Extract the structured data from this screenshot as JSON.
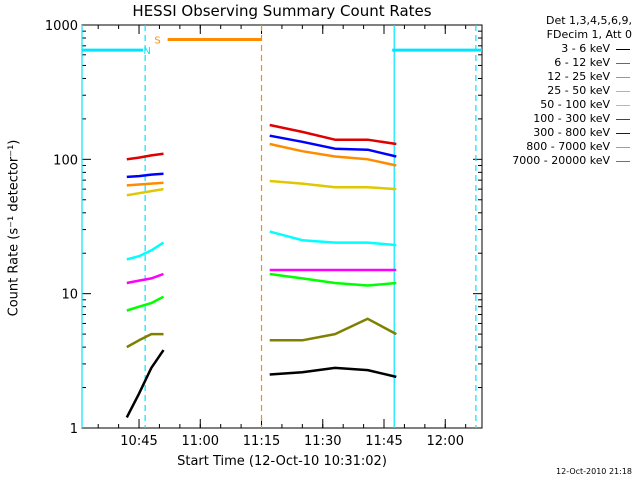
{
  "chart_data": {
    "type": "line",
    "title": "HESSI Observing Summary Count Rates",
    "xlabel": "Start Time (12-Oct-10 10:31:02)",
    "ylabel": "Count Rate (s⁻¹ detector⁻¹)",
    "yscale": "log",
    "ylim": [
      1,
      1000
    ],
    "xlim": [
      "10:31:02",
      "12:09:00"
    ],
    "x_ticks": [
      "10:45",
      "11:00",
      "11:15",
      "11:30",
      "11:45",
      "12:00"
    ],
    "y_ticks": [
      "1",
      "10",
      "100",
      "1000"
    ],
    "legend_header": [
      "Det 1,3,4,5,6,9,",
      "FDecim 1, Att 0"
    ],
    "legend_placement": "outside-right",
    "timestamp": "12-Oct-2010 21:18",
    "flags": [
      {
        "label": "N",
        "color": "#00e5ff"
      },
      {
        "label": "S",
        "color": "#ff8c00"
      }
    ],
    "flag_segments": [
      {
        "name": "N",
        "color": "#00e5ff",
        "start": "10:31:02",
        "end": "10:46",
        "level": 650
      },
      {
        "name": "N",
        "color": "#00e5ff",
        "start": "11:47",
        "end": "12:09",
        "level": 650
      },
      {
        "name": "S",
        "color": "#ff8c00",
        "start": "10:52",
        "end": "11:15",
        "level": 780
      }
    ],
    "vertical_markers": [
      {
        "time": "10:31:02",
        "color": "#00e5ff",
        "style": "solid"
      },
      {
        "time": "10:46:30",
        "color": "#00e5ff",
        "style": "dashed"
      },
      {
        "time": "11:15:00",
        "color": "#ff8c00",
        "style": "dashed"
      },
      {
        "time": "11:47:30",
        "color": "#00e5ff",
        "style": "solid"
      },
      {
        "time": "12:07:30",
        "color": "#00e5ff",
        "style": "dashed"
      }
    ],
    "series": [
      {
        "name": "3 - 6 keV",
        "color": "#000000",
        "segments": [
          {
            "times": [
              "10:42",
              "10:45",
              "10:48",
              "10:51"
            ],
            "values": [
              1.2,
              1.8,
              2.8,
              3.8
            ]
          },
          {
            "times": [
              "11:17",
              "11:25",
              "11:33",
              "11:41",
              "11:48"
            ],
            "values": [
              2.5,
              2.6,
              2.8,
              2.7,
              2.4
            ]
          }
        ]
      },
      {
        "name": "6 - 12 keV",
        "color": "#ff00ff",
        "segments": [
          {
            "times": [
              "10:42",
              "10:45",
              "10:48",
              "10:51"
            ],
            "values": [
              12,
              12.5,
              13,
              14
            ]
          },
          {
            "times": [
              "11:17",
              "11:25",
              "11:33",
              "11:41",
              "11:48"
            ],
            "values": [
              15,
              15,
              15,
              15,
              15
            ]
          }
        ]
      },
      {
        "name": "12 - 25 keV",
        "color": "#00ff00",
        "segments": [
          {
            "times": [
              "10:42",
              "10:45",
              "10:48",
              "10:51"
            ],
            "values": [
              7.5,
              8,
              8.5,
              9.5
            ]
          },
          {
            "times": [
              "11:17",
              "11:25",
              "11:33",
              "11:41",
              "11:48"
            ],
            "values": [
              14,
              13,
              12,
              11.5,
              12
            ]
          }
        ]
      },
      {
        "name": "25 - 50 keV",
        "color": "#00ffff",
        "segments": [
          {
            "times": [
              "10:42",
              "10:45",
              "10:48",
              "10:51"
            ],
            "values": [
              18,
              19,
              21,
              24
            ]
          },
          {
            "times": [
              "11:17",
              "11:25",
              "11:33",
              "11:41",
              "11:48"
            ],
            "values": [
              29,
              25,
              24,
              24,
              23
            ]
          }
        ]
      },
      {
        "name": "50 - 100 keV",
        "color": "#e0c800",
        "segments": [
          {
            "times": [
              "10:42",
              "10:45",
              "10:48",
              "10:51"
            ],
            "values": [
              54,
              56,
              58,
              60
            ]
          },
          {
            "times": [
              "11:17",
              "11:25",
              "11:33",
              "11:41",
              "11:48"
            ],
            "values": [
              69,
              66,
              62,
              62,
              60
            ]
          }
        ]
      },
      {
        "name": "100 - 300 keV",
        "color": "#e00000",
        "segments": [
          {
            "times": [
              "10:42",
              "10:45",
              "10:48",
              "10:51"
            ],
            "values": [
              100,
              103,
              107,
              110
            ]
          },
          {
            "times": [
              "11:17",
              "11:25",
              "11:33",
              "11:41",
              "11:48"
            ],
            "values": [
              180,
              160,
              140,
              140,
              130
            ]
          }
        ]
      },
      {
        "name": "300 - 800 keV",
        "color": "#0000ff",
        "segments": [
          {
            "times": [
              "10:42",
              "10:45",
              "10:48",
              "10:51"
            ],
            "values": [
              74,
              75,
              77,
              78
            ]
          },
          {
            "times": [
              "11:17",
              "11:25",
              "11:33",
              "11:41",
              "11:48"
            ],
            "values": [
              150,
              135,
              120,
              118,
              105
            ]
          }
        ]
      },
      {
        "name": "800 - 7000 keV",
        "color": "#ff8c00",
        "segments": [
          {
            "times": [
              "10:42",
              "10:45",
              "10:48",
              "10:51"
            ],
            "values": [
              64,
              65,
              66,
              67
            ]
          },
          {
            "times": [
              "11:17",
              "11:25",
              "11:33",
              "11:41",
              "11:48"
            ],
            "values": [
              130,
              115,
              105,
              100,
              90
            ]
          }
        ]
      },
      {
        "name": "7000 - 20000 keV",
        "color": "#808000",
        "segments": [
          {
            "times": [
              "10:42",
              "10:45",
              "10:48",
              "10:51"
            ],
            "values": [
              4,
              4.5,
              5,
              5
            ]
          },
          {
            "times": [
              "11:17",
              "11:25",
              "11:33",
              "11:41",
              "11:48"
            ],
            "values": [
              4.5,
              4.5,
              5,
              6.5,
              5
            ]
          }
        ]
      }
    ]
  }
}
